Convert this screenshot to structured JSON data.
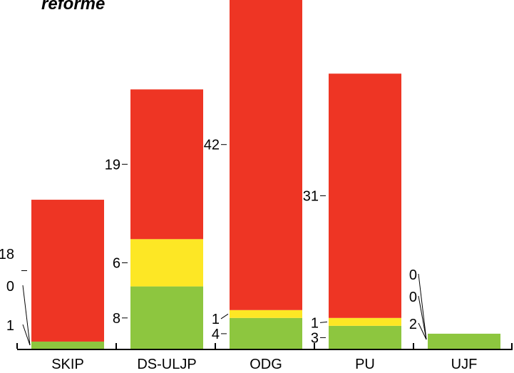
{
  "title": "reforme",
  "colors": {
    "for": "#ee3524",
    "abstain": "#fde725",
    "against": "#8dc63f",
    "axis": "#000000"
  },
  "chart_data": {
    "type": "bar",
    "stacked": true,
    "title": "reforme",
    "categories": [
      "SKIP",
      "DS-ULJP",
      "ODG",
      "PU",
      "UJF"
    ],
    "series": [
      {
        "key": "against",
        "values": [
          1,
          8,
          4,
          3,
          2
        ]
      },
      {
        "key": "abstain",
        "values": [
          0,
          6,
          1,
          1,
          0
        ]
      },
      {
        "key": "for",
        "values": [
          18,
          19,
          42,
          31,
          0
        ]
      }
    ],
    "ylim": [
      0,
      72
    ],
    "legend": "none"
  }
}
